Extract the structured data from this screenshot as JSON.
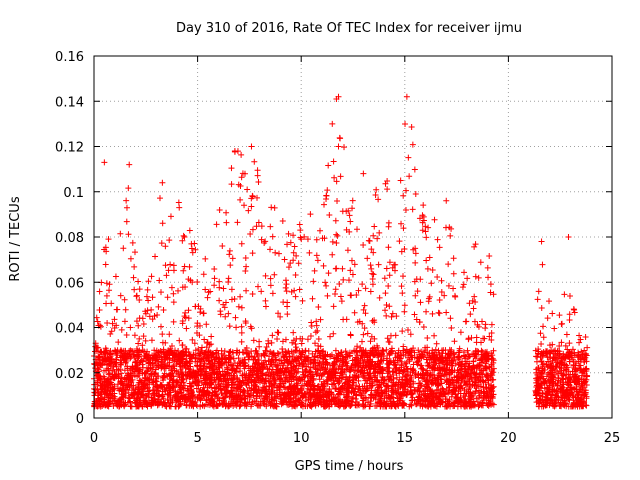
{
  "chart_data": {
    "type": "scatter",
    "title": "Day 310 of 2016, Rate Of TEC Index for receiver ijmu",
    "xlabel": "GPS time / hours",
    "ylabel": "ROTI / TECUs",
    "xlim": [
      0,
      25
    ],
    "ylim": [
      0,
      0.16
    ],
    "x_ticks": [
      0,
      5,
      10,
      15,
      20,
      25
    ],
    "x_tick_labels": [
      "0",
      "5",
      "10",
      "15",
      "20",
      "25"
    ],
    "y_ticks": [
      0,
      0.02,
      0.04,
      0.06,
      0.08,
      0.1,
      0.12,
      0.14,
      0.16
    ],
    "y_tick_labels": [
      "0",
      "0.02",
      "0.04",
      "0.06",
      "0.08",
      "0.1",
      "0.12",
      "0.14",
      "0.16"
    ],
    "grid": true,
    "marker": "+",
    "color": "#ff0000",
    "data_segments": [
      {
        "x_start": 0.0,
        "x_end": 19.3,
        "typical_low": 0.005,
        "typical_high": 0.03
      },
      {
        "x_start": 21.3,
        "x_end": 23.8,
        "typical_low": 0.005,
        "typical_high": 0.03
      }
    ],
    "envelope": [
      {
        "x": 0.0,
        "y": 0.034
      },
      {
        "x": 0.3,
        "y": 0.06
      },
      {
        "x": 0.5,
        "y": 0.113
      },
      {
        "x": 1.0,
        "y": 0.066
      },
      {
        "x": 1.7,
        "y": 0.112
      },
      {
        "x": 2.3,
        "y": 0.05
      },
      {
        "x": 3.3,
        "y": 0.104
      },
      {
        "x": 4.2,
        "y": 0.095
      },
      {
        "x": 5.2,
        "y": 0.07
      },
      {
        "x": 6.0,
        "y": 0.09
      },
      {
        "x": 6.8,
        "y": 0.118
      },
      {
        "x": 7.6,
        "y": 0.12
      },
      {
        "x": 8.2,
        "y": 0.105
      },
      {
        "x": 9.0,
        "y": 0.093
      },
      {
        "x": 10.0,
        "y": 0.085
      },
      {
        "x": 10.8,
        "y": 0.095
      },
      {
        "x": 11.5,
        "y": 0.13
      },
      {
        "x": 11.8,
        "y": 0.142
      },
      {
        "x": 12.5,
        "y": 0.1
      },
      {
        "x": 13.0,
        "y": 0.108
      },
      {
        "x": 14.0,
        "y": 0.106
      },
      {
        "x": 14.8,
        "y": 0.105
      },
      {
        "x": 15.1,
        "y": 0.142
      },
      {
        "x": 16.0,
        "y": 0.09
      },
      {
        "x": 17.0,
        "y": 0.096
      },
      {
        "x": 18.0,
        "y": 0.083
      },
      {
        "x": 19.0,
        "y": 0.076
      },
      {
        "x": 19.3,
        "y": 0.06
      },
      {
        "x": 21.3,
        "y": 0.038
      },
      {
        "x": 21.6,
        "y": 0.078
      },
      {
        "x": 22.3,
        "y": 0.04
      },
      {
        "x": 22.9,
        "y": 0.08
      },
      {
        "x": 23.5,
        "y": 0.035
      },
      {
        "x": 23.8,
        "y": 0.04
      }
    ],
    "notable_points": [
      {
        "x": 0.5,
        "y": 0.113
      },
      {
        "x": 1.7,
        "y": 0.112
      },
      {
        "x": 3.3,
        "y": 0.104
      },
      {
        "x": 6.8,
        "y": 0.118
      },
      {
        "x": 7.6,
        "y": 0.12
      },
      {
        "x": 11.5,
        "y": 0.13
      },
      {
        "x": 11.8,
        "y": 0.142
      },
      {
        "x": 11.7,
        "y": 0.141
      },
      {
        "x": 11.8,
        "y": 0.12
      },
      {
        "x": 15.1,
        "y": 0.142
      },
      {
        "x": 13.0,
        "y": 0.108
      },
      {
        "x": 14.8,
        "y": 0.105
      },
      {
        "x": 17.0,
        "y": 0.096
      },
      {
        "x": 21.6,
        "y": 0.078
      },
      {
        "x": 22.9,
        "y": 0.08
      }
    ]
  }
}
